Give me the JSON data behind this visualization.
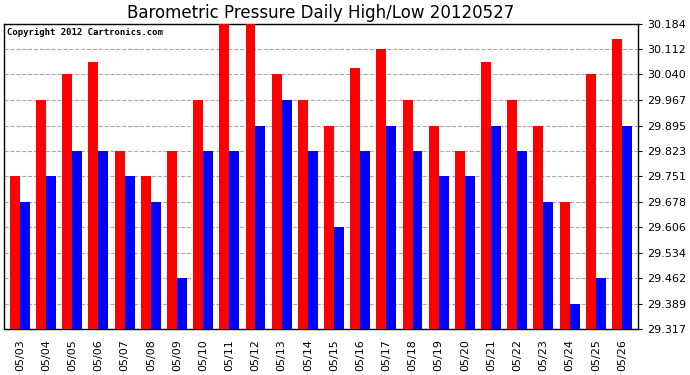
{
  "title": "Barometric Pressure Daily High/Low 20120527",
  "copyright": "Copyright 2012 Cartronics.com",
  "dates": [
    "05/03",
    "05/04",
    "05/05",
    "05/06",
    "05/07",
    "05/08",
    "05/09",
    "05/10",
    "05/11",
    "05/12",
    "05/13",
    "05/14",
    "05/15",
    "05/16",
    "05/17",
    "05/18",
    "05/19",
    "05/20",
    "05/21",
    "05/22",
    "05/23",
    "05/24",
    "05/25",
    "05/26"
  ],
  "highs": [
    29.751,
    29.967,
    30.04,
    30.075,
    29.823,
    29.751,
    29.823,
    29.967,
    30.184,
    30.184,
    30.04,
    29.967,
    29.895,
    30.057,
    30.112,
    29.967,
    29.895,
    29.823,
    30.075,
    29.967,
    29.895,
    29.678,
    30.04,
    30.14
  ],
  "lows": [
    29.678,
    29.751,
    29.823,
    29.823,
    29.751,
    29.678,
    29.462,
    29.823,
    29.823,
    29.895,
    29.967,
    29.823,
    29.606,
    29.823,
    29.895,
    29.823,
    29.751,
    29.751,
    29.895,
    29.823,
    29.678,
    29.389,
    29.462,
    29.895
  ],
  "ymin": 29.317,
  "ymax": 30.184,
  "yticks": [
    29.317,
    29.389,
    29.462,
    29.534,
    29.606,
    29.678,
    29.751,
    29.823,
    29.895,
    29.967,
    30.04,
    30.112,
    30.184
  ],
  "bar_width": 0.38,
  "high_color": "#FF0000",
  "low_color": "#0000FF",
  "bg_color": "#FFFFFF",
  "grid_color": "#AAAAAA",
  "title_fontsize": 12,
  "tick_fontsize": 8
}
